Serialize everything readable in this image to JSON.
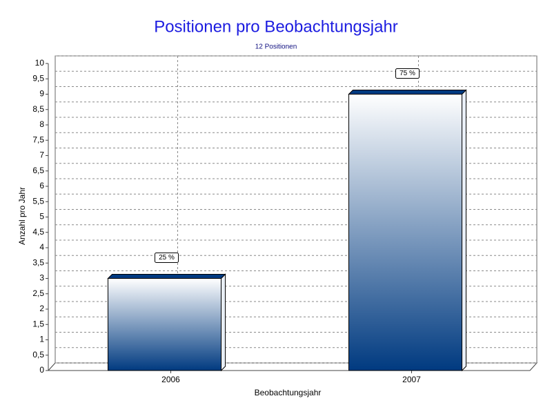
{
  "chart_data": {
    "type": "bar",
    "title": "Positionen pro Beobachtungsjahr",
    "subtitle": "12 Positionen",
    "x_label": "Beobachtungsjahr",
    "y_label": "Anzahl pro Jahr",
    "categories": [
      "2006",
      "2007"
    ],
    "values": [
      3,
      9
    ],
    "percent_values": [
      25,
      75
    ],
    "percent_labels": [
      "25 %",
      "75 %"
    ],
    "color": "#003a80",
    "grid": true,
    "ylim": [
      0,
      10
    ],
    "yticks": [
      0,
      {
        "value": 0.5,
        "label": "0,5"
      },
      1,
      {
        "value": 1.5,
        "label": "1,5"
      },
      2,
      {
        "value": 2.5,
        "label": "2,5"
      },
      3,
      {
        "value": 3.5,
        "label": "3,5"
      },
      4,
      {
        "value": 4.5,
        "label": "4,5"
      },
      5,
      {
        "value": 5.5,
        "label": "5,5"
      },
      6,
      {
        "value": 6.5,
        "label": "6,5"
      },
      7,
      {
        "value": 7.5,
        "label": "7,5"
      },
      8,
      {
        "value": 8.5,
        "label": "8,5"
      },
      9,
      {
        "value": 9.5,
        "label": "9,5"
      },
      10
    ]
  }
}
